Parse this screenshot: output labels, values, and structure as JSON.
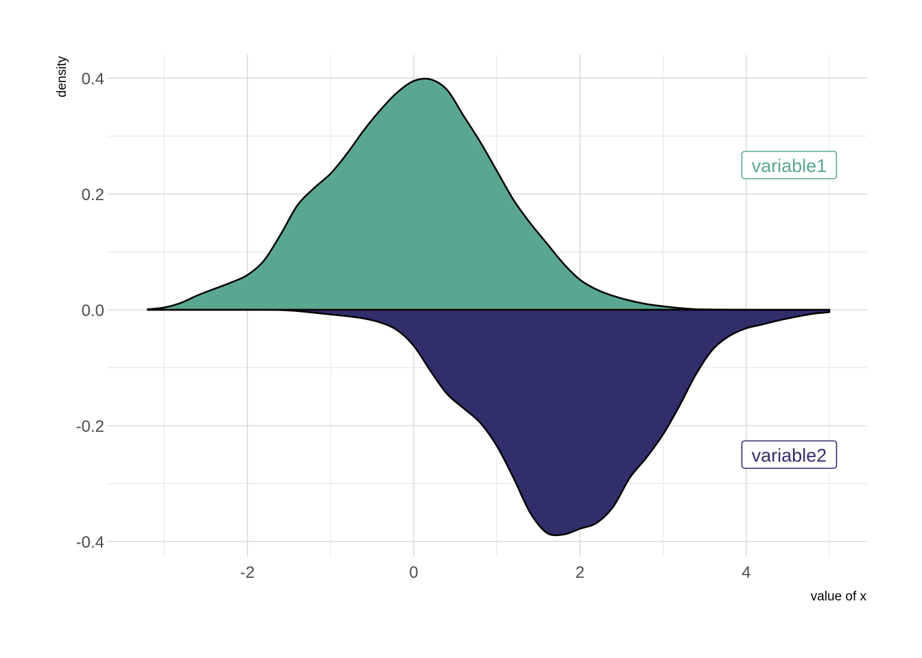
{
  "chart_data": {
    "type": "area",
    "title": "",
    "xlabel": "value of x",
    "ylabel": "density",
    "xlim": [
      -3.2,
      5.0
    ],
    "ylim": [
      -0.4,
      0.4
    ],
    "x_ticks": [
      -2,
      0,
      2,
      4
    ],
    "x_tick_labels": [
      "-2",
      "0",
      "2",
      "4"
    ],
    "y_ticks": [
      -0.4,
      -0.2,
      0.0,
      0.2,
      0.4
    ],
    "y_tick_labels": [
      "-0.4",
      "-0.2",
      "0.0",
      "0.2",
      "0.4"
    ],
    "grid": true,
    "series": [
      {
        "name": "variable1",
        "color": "#5aa791",
        "x": [
          -3.2,
          -3.0,
          -2.8,
          -2.6,
          -2.4,
          -2.2,
          -2.0,
          -1.8,
          -1.6,
          -1.4,
          -1.2,
          -1.0,
          -0.8,
          -0.6,
          -0.4,
          -0.2,
          0.0,
          0.2,
          0.4,
          0.6,
          0.8,
          1.0,
          1.2,
          1.4,
          1.6,
          1.8,
          2.0,
          2.2,
          2.4,
          2.6,
          2.8,
          3.0,
          3.2,
          3.4,
          3.6,
          3.8,
          4.0,
          4.2,
          4.4,
          4.6,
          4.8,
          5.0
        ],
        "y": [
          0.001,
          0.004,
          0.012,
          0.025,
          0.036,
          0.047,
          0.06,
          0.085,
          0.13,
          0.18,
          0.21,
          0.235,
          0.27,
          0.31,
          0.345,
          0.375,
          0.395,
          0.398,
          0.38,
          0.335,
          0.29,
          0.24,
          0.19,
          0.15,
          0.115,
          0.08,
          0.052,
          0.035,
          0.024,
          0.016,
          0.01,
          0.006,
          0.003,
          0.001,
          0.0005,
          0.0002,
          0.0001,
          0.0,
          0.0,
          0.0,
          0.0,
          0.0
        ]
      },
      {
        "name": "variable2",
        "color": "#312e6c",
        "x": [
          -3.2,
          -3.0,
          -2.8,
          -2.6,
          -2.4,
          -2.2,
          -2.0,
          -1.8,
          -1.6,
          -1.4,
          -1.2,
          -1.0,
          -0.8,
          -0.6,
          -0.4,
          -0.2,
          0.0,
          0.2,
          0.4,
          0.6,
          0.8,
          1.0,
          1.2,
          1.4,
          1.6,
          1.8,
          2.0,
          2.2,
          2.4,
          2.6,
          2.8,
          3.0,
          3.2,
          3.4,
          3.6,
          3.8,
          4.0,
          4.2,
          4.4,
          4.6,
          4.8,
          5.0
        ],
        "y": [
          -0.0,
          -0.0,
          -0.0,
          -0.0,
          -0.0,
          -0.0,
          -0.0,
          -0.0,
          -0.0005,
          -0.002,
          -0.005,
          -0.008,
          -0.011,
          -0.015,
          -0.022,
          -0.035,
          -0.062,
          -0.105,
          -0.145,
          -0.17,
          -0.195,
          -0.235,
          -0.29,
          -0.35,
          -0.385,
          -0.388,
          -0.378,
          -0.368,
          -0.34,
          -0.29,
          -0.255,
          -0.215,
          -0.165,
          -0.11,
          -0.068,
          -0.045,
          -0.032,
          -0.025,
          -0.018,
          -0.012,
          -0.007,
          -0.004
        ]
      }
    ],
    "annotations": [
      {
        "text": "variable1",
        "x": 4.5,
        "y": 0.25,
        "color": "#5aa791"
      },
      {
        "text": "variable2",
        "x": 4.5,
        "y": -0.25,
        "color": "#312e6c"
      }
    ]
  }
}
